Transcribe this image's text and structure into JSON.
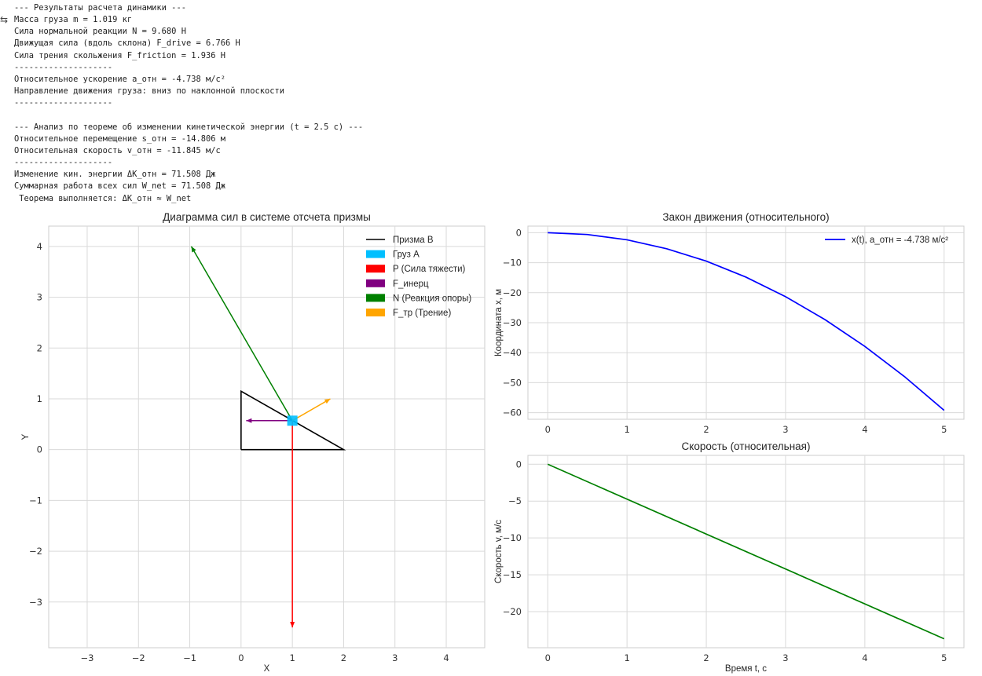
{
  "output": {
    "icon": "output-toggle-icon",
    "lines": [
      "--- Результаты расчета динамики ---",
      "Масса груза m = 1.019 кг",
      "Сила нормальной реакции N = 9.680 Н",
      "Движущая сила (вдоль склона) F_drive = 6.766 Н",
      "Сила трения скольжения F_friction = 1.936 Н",
      "--------------------",
      "Относительное ускорение а_отн = -4.738 м/с²",
      "Направление движения груза: вниз по наклонной плоскости",
      "--------------------",
      "",
      "--- Анализ по теореме об изменении кинетической энергии (t = 2.5 с) ---",
      "Относительное перемещение s_отн = -14.806 м",
      "Относительная скорость v_отн = -11.845 м/с",
      "--------------------",
      "Изменение кин. энергии ΔK_отн = 71.508 Дж",
      "Суммарная работа всех сил W_net = 71.508 Дж",
      " Теорема выполняется: ΔK_отн ≈ W_net"
    ]
  },
  "chart_data": [
    {
      "type": "diagram",
      "title": "Диаграмма сил в системе отсчета призмы",
      "xlabel": "X",
      "ylabel": "Y",
      "xlim": [
        -3.75,
        4.75
      ],
      "ylim": [
        -3.9,
        4.4
      ],
      "xticks": [
        -3,
        -2,
        -1,
        0,
        1,
        2,
        3,
        4
      ],
      "yticks": [
        -3,
        -2,
        -1,
        0,
        1,
        2,
        3,
        4
      ],
      "grid": true,
      "legend_position": "top-right",
      "prism": {
        "name": "Призма B",
        "color": "#000000",
        "points": [
          [
            0,
            0
          ],
          [
            2,
            0
          ],
          [
            0,
            1.15
          ],
          [
            0,
            0
          ]
        ]
      },
      "block": {
        "name": "Груз A",
        "color": "#00bfff",
        "center": [
          1.0,
          0.57
        ],
        "size": 0.2
      },
      "forces": [
        {
          "name": "P (Сила тяжести)",
          "color": "#ff0000",
          "from": [
            1.0,
            0.57
          ],
          "to": [
            1.0,
            -3.5
          ]
        },
        {
          "name": "F_инерц",
          "color": "#800080",
          "from": [
            1.0,
            0.57
          ],
          "to": [
            0.1,
            0.57
          ]
        },
        {
          "name": "N (Реакция опоры)",
          "color": "#008000",
          "from": [
            1.0,
            0.57
          ],
          "to": [
            -0.97,
            4.0
          ]
        },
        {
          "name": "F_тр (Трение)",
          "color": "#ffa500",
          "from": [
            1.0,
            0.57
          ],
          "to": [
            1.74,
            1.0
          ]
        }
      ]
    },
    {
      "type": "line",
      "title": "Закон движения (относительного)",
      "xlabel": "",
      "ylabel": "Координата x, м",
      "xlim": [
        -0.25,
        5.25
      ],
      "ylim": [
        -62.2,
        2.2
      ],
      "xticks": [
        0,
        1,
        2,
        3,
        4,
        5
      ],
      "yticks": [
        0,
        -10,
        -20,
        -30,
        -40,
        -50,
        -60
      ],
      "grid": true,
      "legend_position": "top-right",
      "series": [
        {
          "name": "x(t), a_отн = -4.738 м/с²",
          "color": "#0000ff",
          "x": [
            0,
            0.5,
            1,
            1.5,
            2,
            2.5,
            3,
            3.5,
            4,
            4.5,
            5
          ],
          "y": [
            0,
            -0.592,
            -2.369,
            -5.33,
            -9.476,
            -14.806,
            -21.321,
            -29.02,
            -37.904,
            -47.972,
            -59.225
          ]
        }
      ]
    },
    {
      "type": "line",
      "title": "Скорость (относительная)",
      "xlabel": "Время t, с",
      "ylabel": "Скорость v, м/с",
      "xlim": [
        -0.25,
        5.25
      ],
      "ylim": [
        -24.9,
        1.2
      ],
      "xticks": [
        0,
        1,
        2,
        3,
        4,
        5
      ],
      "yticks": [
        0,
        -5,
        -10,
        -15,
        -20
      ],
      "grid": true,
      "series": [
        {
          "name": "",
          "color": "#008000",
          "x": [
            0,
            5
          ],
          "y": [
            0,
            -23.69
          ]
        }
      ]
    }
  ]
}
